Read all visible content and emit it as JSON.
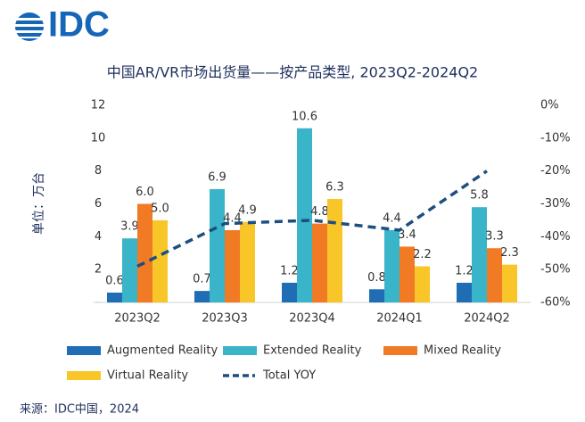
{
  "logo": "IDC",
  "source": "来源：IDC中国，2024",
  "chart_data": {
    "type": "bar",
    "title": "中国AR/VR市场出货量——按产品类型, 2023Q2-2024Q2",
    "y_label": "单位：万台",
    "categories": [
      "2023Q2",
      "2023Q3",
      "2023Q4",
      "2024Q1",
      "2024Q2"
    ],
    "series": [
      {
        "name": "Augmented Reality",
        "color": "#1f6db5",
        "values": [
          0.6,
          0.7,
          1.2,
          0.8,
          1.2
        ]
      },
      {
        "name": "Extended Reality",
        "color": "#3ab4c9",
        "values": [
          3.9,
          6.9,
          10.6,
          4.4,
          5.8
        ]
      },
      {
        "name": "Mixed Reality",
        "color": "#f07b24",
        "values": [
          6,
          4.4,
          4.8,
          3.4,
          3.3
        ],
        "value_labels": [
          "6.0",
          "4.4",
          "4.8",
          "3.4",
          "3.3"
        ]
      },
      {
        "name": "Virtual Reality",
        "color": "#f8c628",
        "values": [
          5,
          4.9,
          6.3,
          2.2,
          2.3
        ],
        "value_labels": [
          "5.0",
          "4.9",
          "6.3",
          "2.2",
          "2.3"
        ]
      },
      {
        "name": "Total YOY",
        "color": "#1c4f80",
        "type": "line",
        "linestyle": "dashed",
        "axis": "y2",
        "values": [
          -49,
          -36,
          -35,
          -38,
          -20
        ]
      }
    ],
    "ylim": [
      0,
      12
    ],
    "yticks": [
      {
        "value": 0,
        "label": "-"
      },
      2,
      4,
      6,
      8,
      10,
      12
    ],
    "y2lim": [
      -60,
      0
    ],
    "y2ticks": [
      {
        "value": 0,
        "label": "0%"
      },
      {
        "value": -10,
        "label": "-10%"
      },
      {
        "value": -20,
        "label": "-20%"
      },
      {
        "value": -30,
        "label": "-30%"
      },
      {
        "value": -40,
        "label": "-40%"
      },
      {
        "value": -50,
        "label": "-50%"
      },
      {
        "value": -60,
        "label": "-60%"
      }
    ],
    "grid": false,
    "legend": "bottom"
  }
}
